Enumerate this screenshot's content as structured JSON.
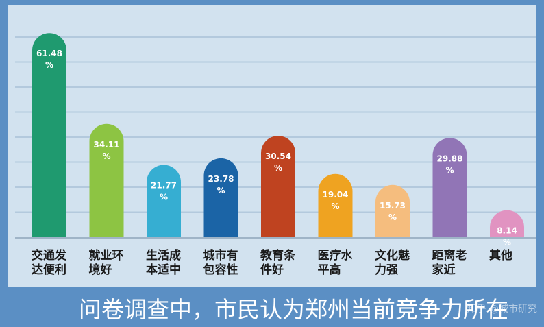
{
  "chart_data": {
    "type": "bar",
    "categories": [
      [
        "交通发",
        "达便利"
      ],
      [
        "就业环",
        "境好"
      ],
      [
        "生活成",
        "本适中"
      ],
      [
        "城市有",
        "包容性"
      ],
      [
        "教育条",
        "件好"
      ],
      [
        "医疗水",
        "平高"
      ],
      [
        "文化魅",
        "力强"
      ],
      [
        "距离老",
        "家近"
      ],
      [
        "其他"
      ]
    ],
    "values": [
      61.48,
      34.11,
      21.77,
      23.78,
      30.54,
      19.04,
      15.73,
      29.88,
      8.14
    ],
    "value_labels": [
      [
        "61.48",
        "%"
      ],
      [
        "34.11",
        "%"
      ],
      [
        "21.77",
        "%"
      ],
      [
        "23.78",
        "%"
      ],
      [
        "30.54",
        "%"
      ],
      [
        "19.04",
        "%"
      ],
      [
        "15.73",
        "%"
      ],
      [
        "29.88",
        "%"
      ],
      [
        "8.14",
        "%"
      ]
    ],
    "colors": [
      "#1f9a6f",
      "#8dc443",
      "#36aed2",
      "#1b64a6",
      "#bf4320",
      "#efa321",
      "#f5bd7e",
      "#9175b6",
      "#e193c1"
    ],
    "ylim": [
      0,
      64
    ],
    "grid": true,
    "title": "",
    "xlabel": "",
    "ylabel": ""
  },
  "caption": "问卷调查中，市民认为郑州当前竞争力所在",
  "watermark": "知乎 @城市研究",
  "colors": {
    "background": "#5b8fc4",
    "panel": "#d2e2ef",
    "grid": "#b3c9dd",
    "axis": "#9fb4c7"
  }
}
